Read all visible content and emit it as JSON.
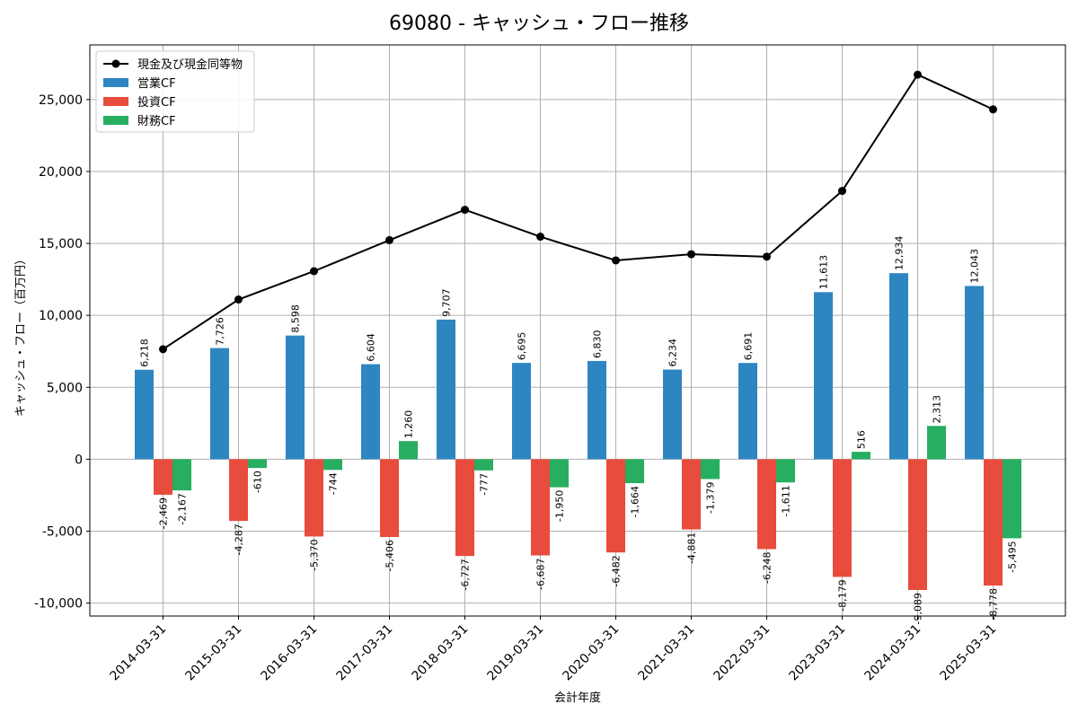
{
  "chart_data": {
    "type": "bar",
    "title": "69080 - キャッシュ・フロー推移",
    "xlabel": "会計年度",
    "ylabel": "キャッシュ・フロー（百万円）",
    "ylim": [
      -10900,
      28800
    ],
    "y_ticks": [
      -10000,
      -5000,
      0,
      5000,
      10000,
      15000,
      20000,
      25000
    ],
    "y_tick_labels": [
      "-10,000",
      "-5,000",
      "0",
      "5,000",
      "10,000",
      "15,000",
      "20,000",
      "25,000"
    ],
    "grid": true,
    "legend_position": "top-left",
    "categories": [
      "2014-03-31",
      "2015-03-31",
      "2016-03-31",
      "2017-03-31",
      "2018-03-31",
      "2019-03-31",
      "2020-03-31",
      "2021-03-31",
      "2022-03-31",
      "2023-03-31",
      "2024-03-31",
      "2025-03-31"
    ],
    "series": [
      {
        "name": "営業CF",
        "kind": "bar",
        "color": "#2e86c1",
        "values": [
          6218,
          7726,
          8598,
          6604,
          9707,
          6695,
          6830,
          6234,
          6691,
          11613,
          12934,
          12043
        ],
        "labels": [
          "6,218",
          "7,726",
          "8,598",
          "6,604",
          "9,707",
          "6,695",
          "6,830",
          "6,234",
          "6,691",
          "11,613",
          "12,934",
          "12,043"
        ]
      },
      {
        "name": "投資CF",
        "kind": "bar",
        "color": "#e74c3c",
        "values": [
          -2469,
          -4287,
          -5370,
          -5406,
          -6727,
          -6687,
          -6482,
          -4881,
          -6248,
          -8179,
          -9089,
          -8778
        ],
        "labels": [
          "-2,469",
          "-4,287",
          "-5,370",
          "-5,406",
          "-6,727",
          "-6,687",
          "-6,482",
          "-4,881",
          "-6,248",
          "-8,179",
          "-9,089",
          "-8,778"
        ]
      },
      {
        "name": "財務CF",
        "kind": "bar",
        "color": "#27ae60",
        "values": [
          -2167,
          -610,
          -744,
          1260,
          -777,
          -1950,
          -1664,
          -1379,
          -1611,
          516,
          2313,
          -5495
        ],
        "labels": [
          "-2,167",
          "-610",
          "-744",
          "1,260",
          "-777",
          "-1,950",
          "-1,664",
          "-1,379",
          "-1,611",
          "516",
          "2,313",
          "-5,495"
        ]
      },
      {
        "name": "現金及び現金同等物",
        "kind": "line",
        "color": "#000000",
        "values": [
          7650,
          11100,
          13070,
          15230,
          17340,
          15470,
          13820,
          14250,
          14080,
          18650,
          26730,
          24320
        ]
      }
    ]
  }
}
